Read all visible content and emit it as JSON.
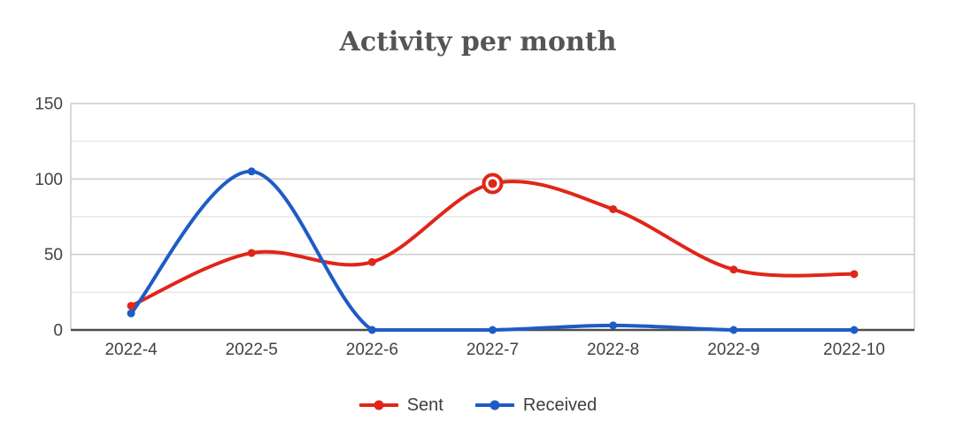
{
  "chart_data": {
    "type": "line",
    "title": "Activity per month",
    "categories": [
      "2022-4",
      "2022-5",
      "2022-6",
      "2022-7",
      "2022-8",
      "2022-9",
      "2022-10"
    ],
    "series": [
      {
        "name": "Sent",
        "color": "#e02619",
        "values": [
          16,
          51,
          45,
          97,
          80,
          40,
          37
        ]
      },
      {
        "name": "Received",
        "color": "#1e5bc6",
        "values": [
          11,
          105,
          0,
          0,
          3,
          0,
          0
        ]
      }
    ],
    "ylim": [
      0,
      150
    ],
    "yticks": [
      0,
      50,
      100,
      150
    ],
    "minor_yticks": [
      25,
      75,
      125
    ],
    "xlabel": "",
    "ylabel": "",
    "grid": true,
    "curve": "smooth",
    "legend_position": "bottom",
    "highlighted_point": {
      "series": "Sent",
      "category": "2022-7"
    }
  },
  "colors": {
    "title_text": "#555555",
    "axis_text": "#424242",
    "grid_major": "#cbcbcb",
    "grid_minor": "#e6e6e6",
    "baseline": "#4d4d4d",
    "background": "#ffffff"
  }
}
